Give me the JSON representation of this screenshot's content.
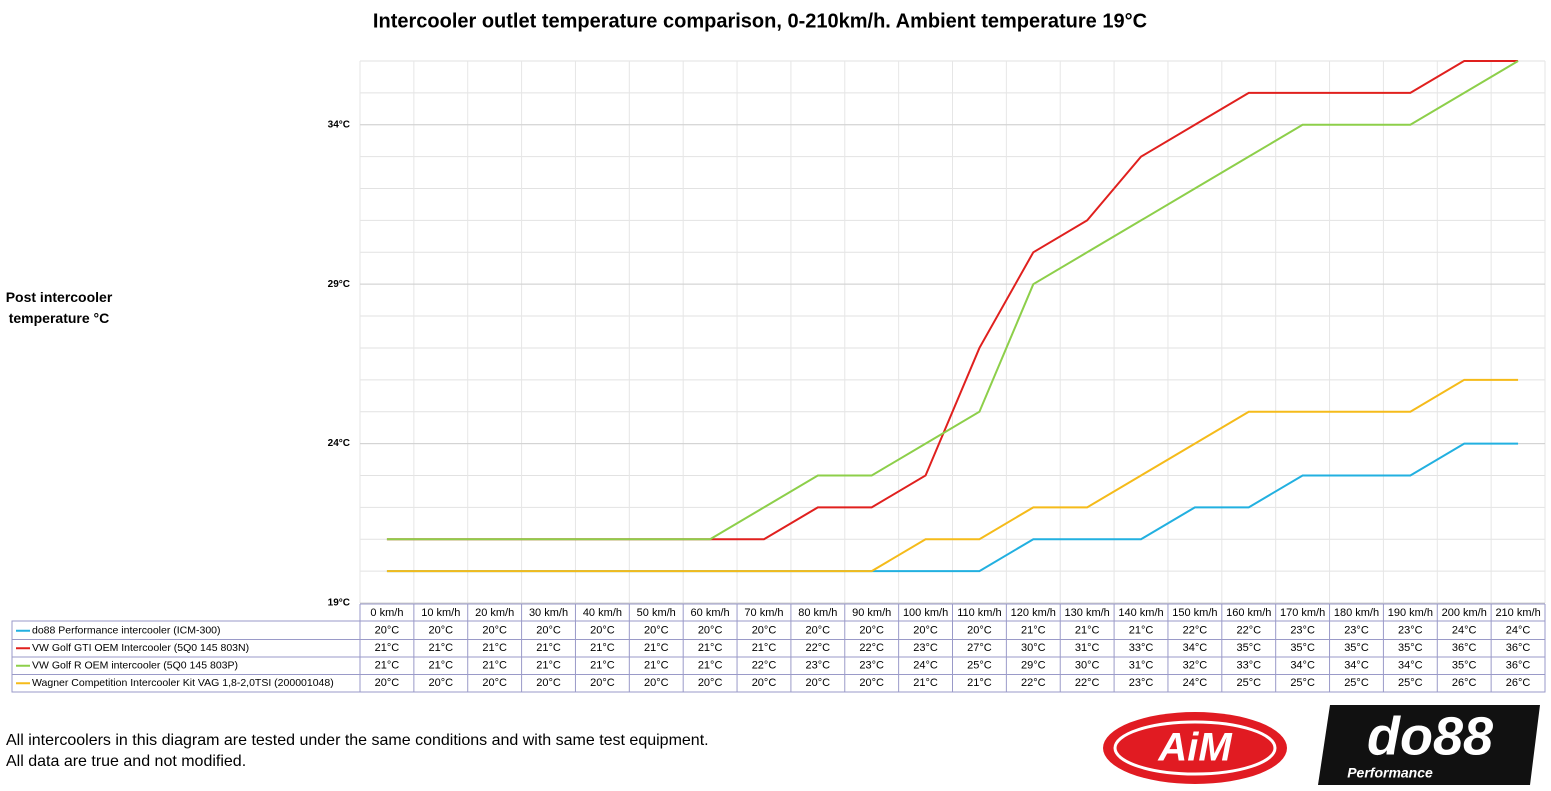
{
  "chart_data": {
    "type": "line",
    "title": "Intercooler outlet temperature comparison, 0-210km/h. Ambient temperature 19°C",
    "y_label": "Post intercooler temperature °C",
    "categories": [
      "0 km/h",
      "10 km/h",
      "20 km/h",
      "30 km/h",
      "40 km/h",
      "50 km/h",
      "60 km/h",
      "70 km/h",
      "80 km/h",
      "90 km/h",
      "100 km/h",
      "110 km/h",
      "120 km/h",
      "130 km/h",
      "140 km/h",
      "150 km/h",
      "160 km/h",
      "170 km/h",
      "180 km/h",
      "190 km/h",
      "200 km/h",
      "210 km/h"
    ],
    "series": [
      {
        "name": "do88 Performance intercooler (ICM-300)",
        "color": "#22b0e0",
        "values": [
          20,
          20,
          20,
          20,
          20,
          20,
          20,
          20,
          20,
          20,
          20,
          20,
          21,
          21,
          21,
          22,
          22,
          23,
          23,
          23,
          24,
          24
        ],
        "value_labels": [
          "20°C",
          "20°C",
          "20°C",
          "20°C",
          "20°C",
          "20°C",
          "20°C",
          "20°C",
          "20°C",
          "20°C",
          "20°C",
          "20°C",
          "21°C",
          "21°C",
          "21°C",
          "22°C",
          "22°C",
          "23°C",
          "23°C",
          "23°C",
          "24°C",
          "24°C"
        ]
      },
      {
        "name": "VW Golf GTI OEM Intercooler (5Q0 145 803N)",
        "color": "#e0201e",
        "values": [
          21,
          21,
          21,
          21,
          21,
          21,
          21,
          21,
          22,
          22,
          23,
          27,
          30,
          31,
          33,
          34,
          35,
          35,
          35,
          35,
          36,
          36
        ],
        "value_labels": [
          "21°C",
          "21°C",
          "21°C",
          "21°C",
          "21°C",
          "21°C",
          "21°C",
          "21°C",
          "22°C",
          "22°C",
          "23°C",
          "27°C",
          "30°C",
          "31°C",
          "33°C",
          "34°C",
          "35°C",
          "35°C",
          "35°C",
          "35°C",
          "36°C",
          "36°C"
        ]
      },
      {
        "name": "VW Golf R OEM intercooler (5Q0 145 803P)",
        "color": "#8dcf4a",
        "values": [
          21,
          21,
          21,
          21,
          21,
          21,
          21,
          22,
          23,
          23,
          24,
          25,
          29,
          30,
          31,
          32,
          33,
          34,
          34,
          34,
          35,
          36
        ],
        "value_labels": [
          "21°C",
          "21°C",
          "21°C",
          "21°C",
          "21°C",
          "21°C",
          "21°C",
          "22°C",
          "23°C",
          "23°C",
          "24°C",
          "25°C",
          "29°C",
          "30°C",
          "31°C",
          "32°C",
          "33°C",
          "34°C",
          "34°C",
          "34°C",
          "35°C",
          "36°C"
        ]
      },
      {
        "name": "Wagner Competition Intercooler Kit VAG 1,8-2,0TSI (200001048)",
        "color": "#f5bb1a",
        "values": [
          20,
          20,
          20,
          20,
          20,
          20,
          20,
          20,
          20,
          20,
          21,
          21,
          22,
          22,
          23,
          24,
          25,
          25,
          25,
          25,
          26,
          26
        ],
        "value_labels": [
          "20°C",
          "20°C",
          "20°C",
          "20°C",
          "20°C",
          "20°C",
          "20°C",
          "20°C",
          "20°C",
          "20°C",
          "21°C",
          "21°C",
          "22°C",
          "22°C",
          "23°C",
          "24°C",
          "25°C",
          "25°C",
          "25°C",
          "25°C",
          "26°C",
          "26°C"
        ]
      }
    ],
    "ylim": [
      19,
      36
    ],
    "yticks": [
      {
        "value": 19,
        "label": "19°C"
      },
      {
        "value": 24,
        "label": "24°C"
      },
      {
        "value": 29,
        "label": "29°C"
      },
      {
        "value": 34,
        "label": "34°C"
      }
    ],
    "grid": true
  },
  "footnote": [
    "All intercoolers in this diagram are tested under the same conditions and with same test equipment.",
    "All data are true and not modified."
  ],
  "logos": {
    "aim": "AiM",
    "do88": "do88",
    "do88_sub": "Performance"
  }
}
